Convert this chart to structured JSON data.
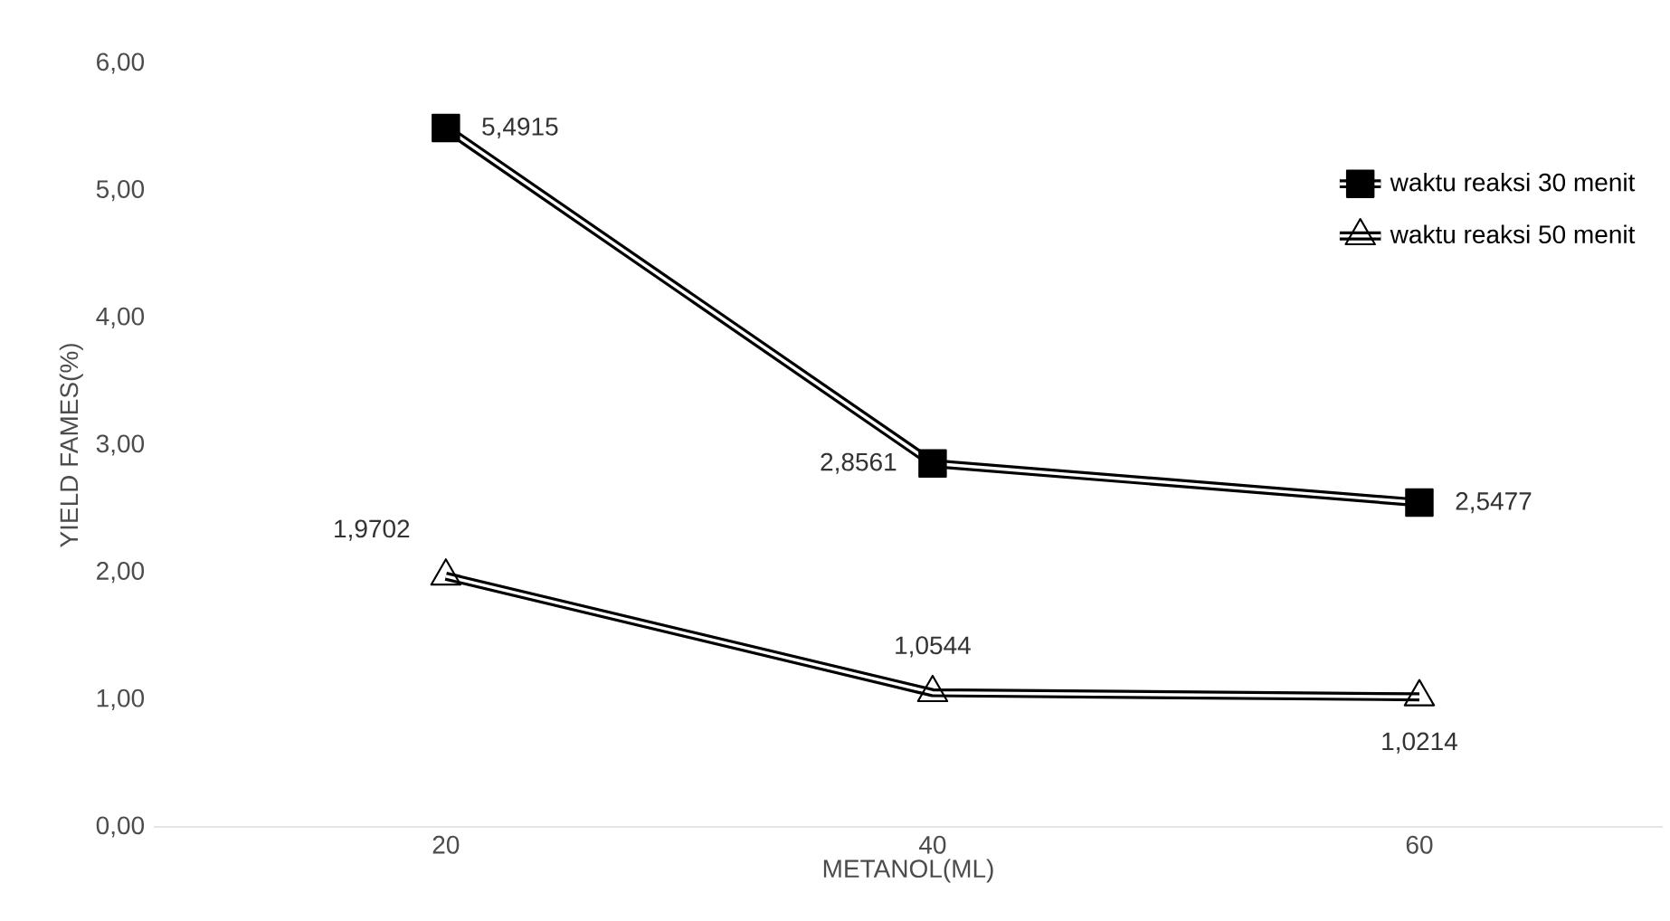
{
  "chart_data": {
    "type": "line",
    "xlabel": "METANOL(ML)",
    "ylabel": "YIELD FAMES(%)",
    "categories": [
      "20",
      "40",
      "60"
    ],
    "series": [
      {
        "name": "waktu reaksi 30 menit",
        "color": "#000000",
        "marker": "square",
        "values": [
          5.4915,
          2.8561,
          2.5477
        ],
        "value_labels": [
          "5,4915",
          "2,8561",
          "2,5477"
        ]
      },
      {
        "name": "waktu reaksi 50 menit",
        "color": "#000000",
        "marker": "triangle",
        "values": [
          1.9702,
          1.0544,
          1.0214
        ],
        "value_labels": [
          "1,9702",
          "1,0544",
          "1,0214"
        ]
      }
    ],
    "ylim": [
      0,
      6
    ],
    "yticks": [
      {
        "value": 0,
        "label": "0,00"
      },
      {
        "value": 1,
        "label": "1,00"
      },
      {
        "value": 2,
        "label": "2,00"
      },
      {
        "value": 3,
        "label": "3,00"
      },
      {
        "value": 4,
        "label": "4,00"
      },
      {
        "value": 5,
        "label": "5,00"
      },
      {
        "value": 6,
        "label": "6,00"
      }
    ],
    "legend": "top right"
  }
}
